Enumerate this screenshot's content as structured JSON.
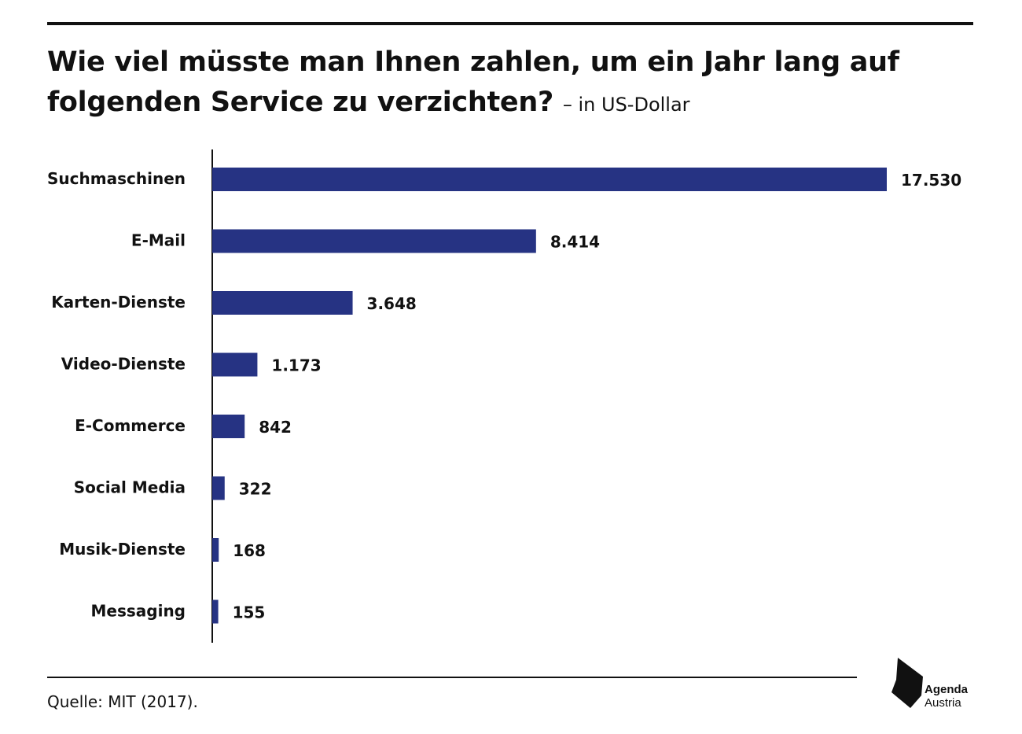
{
  "title": "Wie viel müsste man Ihnen zahlen, um ein Jahr lang auf folgenden Service zu verzichten?",
  "subtitle": "– in US-Dollar",
  "source": "Quelle: MIT (2017).",
  "logo": {
    "line1": "Agenda",
    "line2": "Austria"
  },
  "colors": {
    "bar": "#263383",
    "text": "#111111",
    "rule": "#111111"
  },
  "chart_data": {
    "type": "bar",
    "orientation": "horizontal",
    "categories": [
      "Suchmaschinen",
      "E-Mail",
      "Karten-Dienste",
      "Video-Dienste",
      "E-Commerce",
      "Social Media",
      "Musik-Dienste",
      "Messaging"
    ],
    "values": [
      17530,
      8414,
      3648,
      1173,
      842,
      322,
      168,
      155
    ],
    "value_labels": [
      "17.530",
      "8.414",
      "3.648",
      "1.173",
      "842",
      "322",
      "168",
      "155"
    ],
    "xlim": [
      0,
      17530
    ],
    "grid": false,
    "legend": "none"
  }
}
